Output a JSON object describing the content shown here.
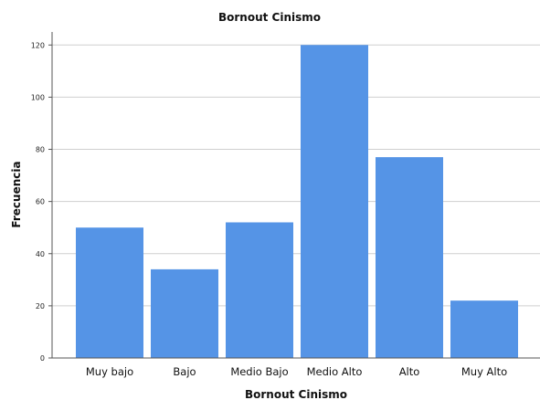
{
  "chart_data": {
    "type": "bar",
    "title": "Bornout Cinismo",
    "xlabel": "Bornout Cinismo",
    "ylabel": "Frecuencia",
    "categories": [
      "Muy bajo",
      "Bajo",
      "Medio Bajo",
      "Medio Alto",
      "Alto",
      "Muy Alto"
    ],
    "values": [
      50,
      34,
      52,
      120,
      77,
      22
    ],
    "ylim": [
      0,
      125
    ],
    "yticks": [
      0,
      20,
      40,
      60,
      80,
      100,
      120
    ],
    "grid": true,
    "bar_color": "#5594e6"
  }
}
